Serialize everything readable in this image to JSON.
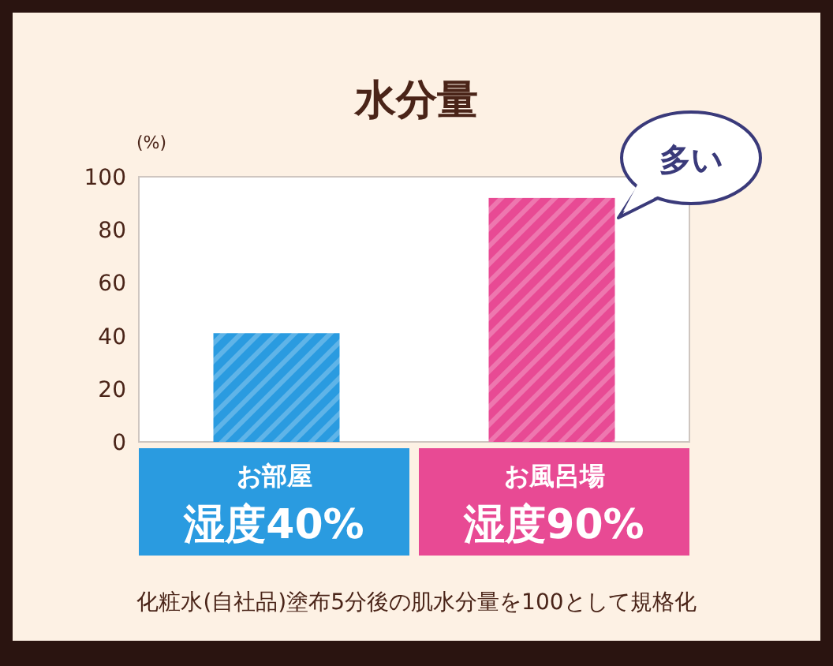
{
  "chart_data": {
    "type": "bar",
    "title": "水分量",
    "ylabel": "(%)",
    "categories": [
      "お部屋",
      "お風呂場"
    ],
    "values": [
      41,
      92
    ],
    "colors": [
      "#2a9be0",
      "#e84a94"
    ],
    "ylim": [
      0,
      100
    ],
    "yticks": [
      0,
      20,
      40,
      60,
      80,
      100
    ],
    "grid": false,
    "annotations": [
      "多い",
      "湿度40%",
      "湿度90%",
      "化粧水(自社品)塗布5分後の肌水分量を100として規格化"
    ]
  }
}
